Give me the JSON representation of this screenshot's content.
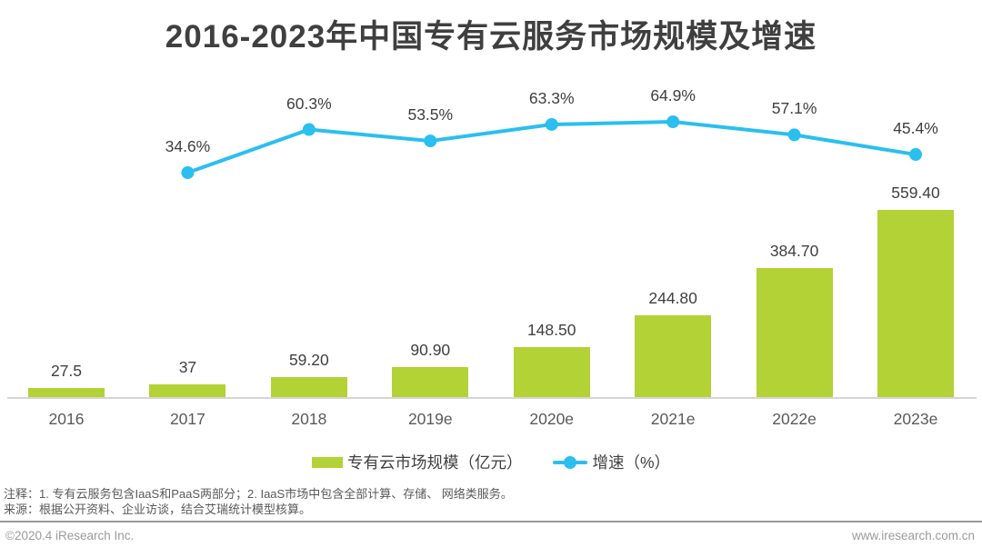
{
  "page": {
    "title": "2016-2023年中国专有云服务市场规模及增速",
    "notes": "注释：1. 专有云服务包含IaaS和PaaS两部分；2. IaaS市场中包含全部计算、存储、 网络类服务。",
    "source": "来源：根据公开资料、企业访谈，结合艾瑞统计模型核算。",
    "footer": {
      "left": "©2020.4 iResearch Inc.",
      "right": "www.iresearch.com.cn"
    }
  },
  "legend": {
    "bar_label": "专有云市场规模（亿元）",
    "line_label": "增速（%）"
  },
  "colors": {
    "bar": "#b3d235",
    "line": "#2abfef",
    "title_text": "#3f3f3f",
    "value_text": "#404040",
    "axis_text": "#595959",
    "muted_text": "#9b9b9b",
    "axis_line": "#d6d6d6"
  },
  "chart_data": {
    "type": "bar",
    "title": "2016-2023年中国专有云服务市场规模及增速",
    "xlabel": "",
    "ylabel": "",
    "grid": false,
    "legend_position": "bottom",
    "value_axis_visible": false,
    "categories": [
      "2016",
      "2017",
      "2018",
      "2019e",
      "2020e",
      "2021e",
      "2022e",
      "2023e"
    ],
    "series": [
      {
        "name": "专有云市场规模（亿元）",
        "type": "bar",
        "color": "#b3d235",
        "values": [
          27.5,
          37,
          59.2,
          90.9,
          148.5,
          244.8,
          384.7,
          559.4
        ],
        "labels": [
          "27.5",
          "37",
          "59.20",
          "90.90",
          "148.50",
          "244.80",
          "384.70",
          "559.40"
        ]
      },
      {
        "name": "增速（%）",
        "type": "line",
        "color": "#2abfef",
        "x": [
          "2017",
          "2018",
          "2019e",
          "2020e",
          "2021e",
          "2022e",
          "2023e"
        ],
        "values": [
          34.6,
          60.3,
          53.5,
          63.3,
          64.9,
          57.1,
          45.4
        ],
        "labels": [
          "34.6%",
          "60.3%",
          "53.5%",
          "63.3%",
          "64.9%",
          "57.1%",
          "45.4%"
        ]
      }
    ]
  }
}
